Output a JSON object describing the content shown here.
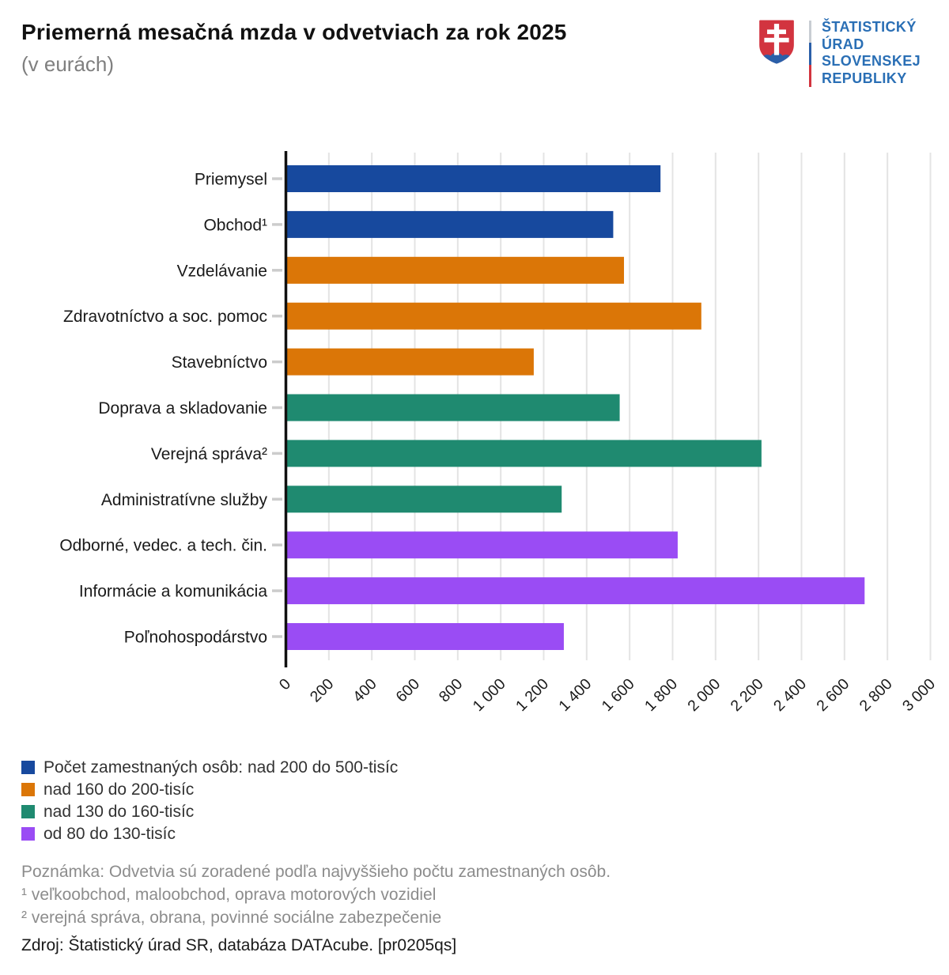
{
  "header": {
    "title": "Priemerná mesačná mzda v odvetviach za rok 2025",
    "subtitle": "(v eurách)",
    "logo": {
      "lines": [
        "ŠTATISTICKÝ",
        "ÚRAD",
        "SLOVENSKEJ",
        "REPUBLIKY"
      ],
      "text_color": "#2a6fb5",
      "shield_red": "#d2343f",
      "shield_blue": "#2b5fa8",
      "divider_colors": [
        "#c8cdd3",
        "#2b5fa8",
        "#d2343f"
      ]
    }
  },
  "chart_data": {
    "type": "bar",
    "orientation": "horizontal",
    "title": "Priemerná mesačná mzda v odvetviach za rok 2025",
    "unit_label": "(v eurách)",
    "xlim": [
      0,
      3000
    ],
    "x_tick_step": 200,
    "x_tick_labels": [
      "0",
      "200",
      "400",
      "600",
      "800",
      "1 000",
      "1 200",
      "1 400",
      "1 600",
      "1 800",
      "2 000",
      "2 200",
      "2 400",
      "2 600",
      "2 800",
      "3 000"
    ],
    "grid": true,
    "bars": [
      {
        "category": "Priemysel",
        "value": 1740,
        "group": "blue"
      },
      {
        "category": "Obchod¹",
        "value": 1520,
        "group": "blue"
      },
      {
        "category": "Vzdelávanie",
        "value": 1570,
        "group": "orange"
      },
      {
        "category": "Zdravotníctvo a soc. pomoc",
        "value": 1930,
        "group": "orange"
      },
      {
        "category": "Stavebníctvo",
        "value": 1150,
        "group": "orange"
      },
      {
        "category": "Doprava a skladovanie",
        "value": 1550,
        "group": "teal"
      },
      {
        "category": "Verejná správa²",
        "value": 2210,
        "group": "teal"
      },
      {
        "category": "Administratívne služby",
        "value": 1280,
        "group": "teal"
      },
      {
        "category": "Odborné, vedec. a tech. čin.",
        "value": 1820,
        "group": "purple"
      },
      {
        "category": "Informácie a komunikácia",
        "value": 2690,
        "group": "purple"
      },
      {
        "category": "Poľnohospodárstvo",
        "value": 1290,
        "group": "purple"
      }
    ],
    "colors": {
      "blue": "#17499e",
      "orange": "#db7607",
      "teal": "#1f8a70",
      "purple": "#9a4cf4"
    },
    "axis_color": "#111111",
    "gridline_color": "#e4e4e4",
    "tick_dash_color": "#cccccc",
    "label_color": "#1a1a1a",
    "legend_position": "bottom-left"
  },
  "legend": {
    "items": [
      {
        "label": "Počet zamestnaných osôb: nad 200 do 500-tisíc",
        "color": "#17499e"
      },
      {
        "label": "nad 160 do 200-tisíc",
        "color": "#db7607"
      },
      {
        "label": "nad 130 do 160-tisíc",
        "color": "#1f8a70"
      },
      {
        "label": "od 80 do 130-tisíc",
        "color": "#9a4cf4"
      }
    ]
  },
  "notes": {
    "note": "Poznámka: Odvetvia sú zoradené podľa najvyššieho počtu zamestnaných osôb.",
    "footnote1": "¹ veľkoobchod, maloobchod, oprava motorových vozidiel",
    "footnote2": "² verejná správa, obrana, povinné sociálne zabezpečenie"
  },
  "source": "Zdroj: Štatistický úrad SR, databáza DATAcube. [pr0205qs]"
}
